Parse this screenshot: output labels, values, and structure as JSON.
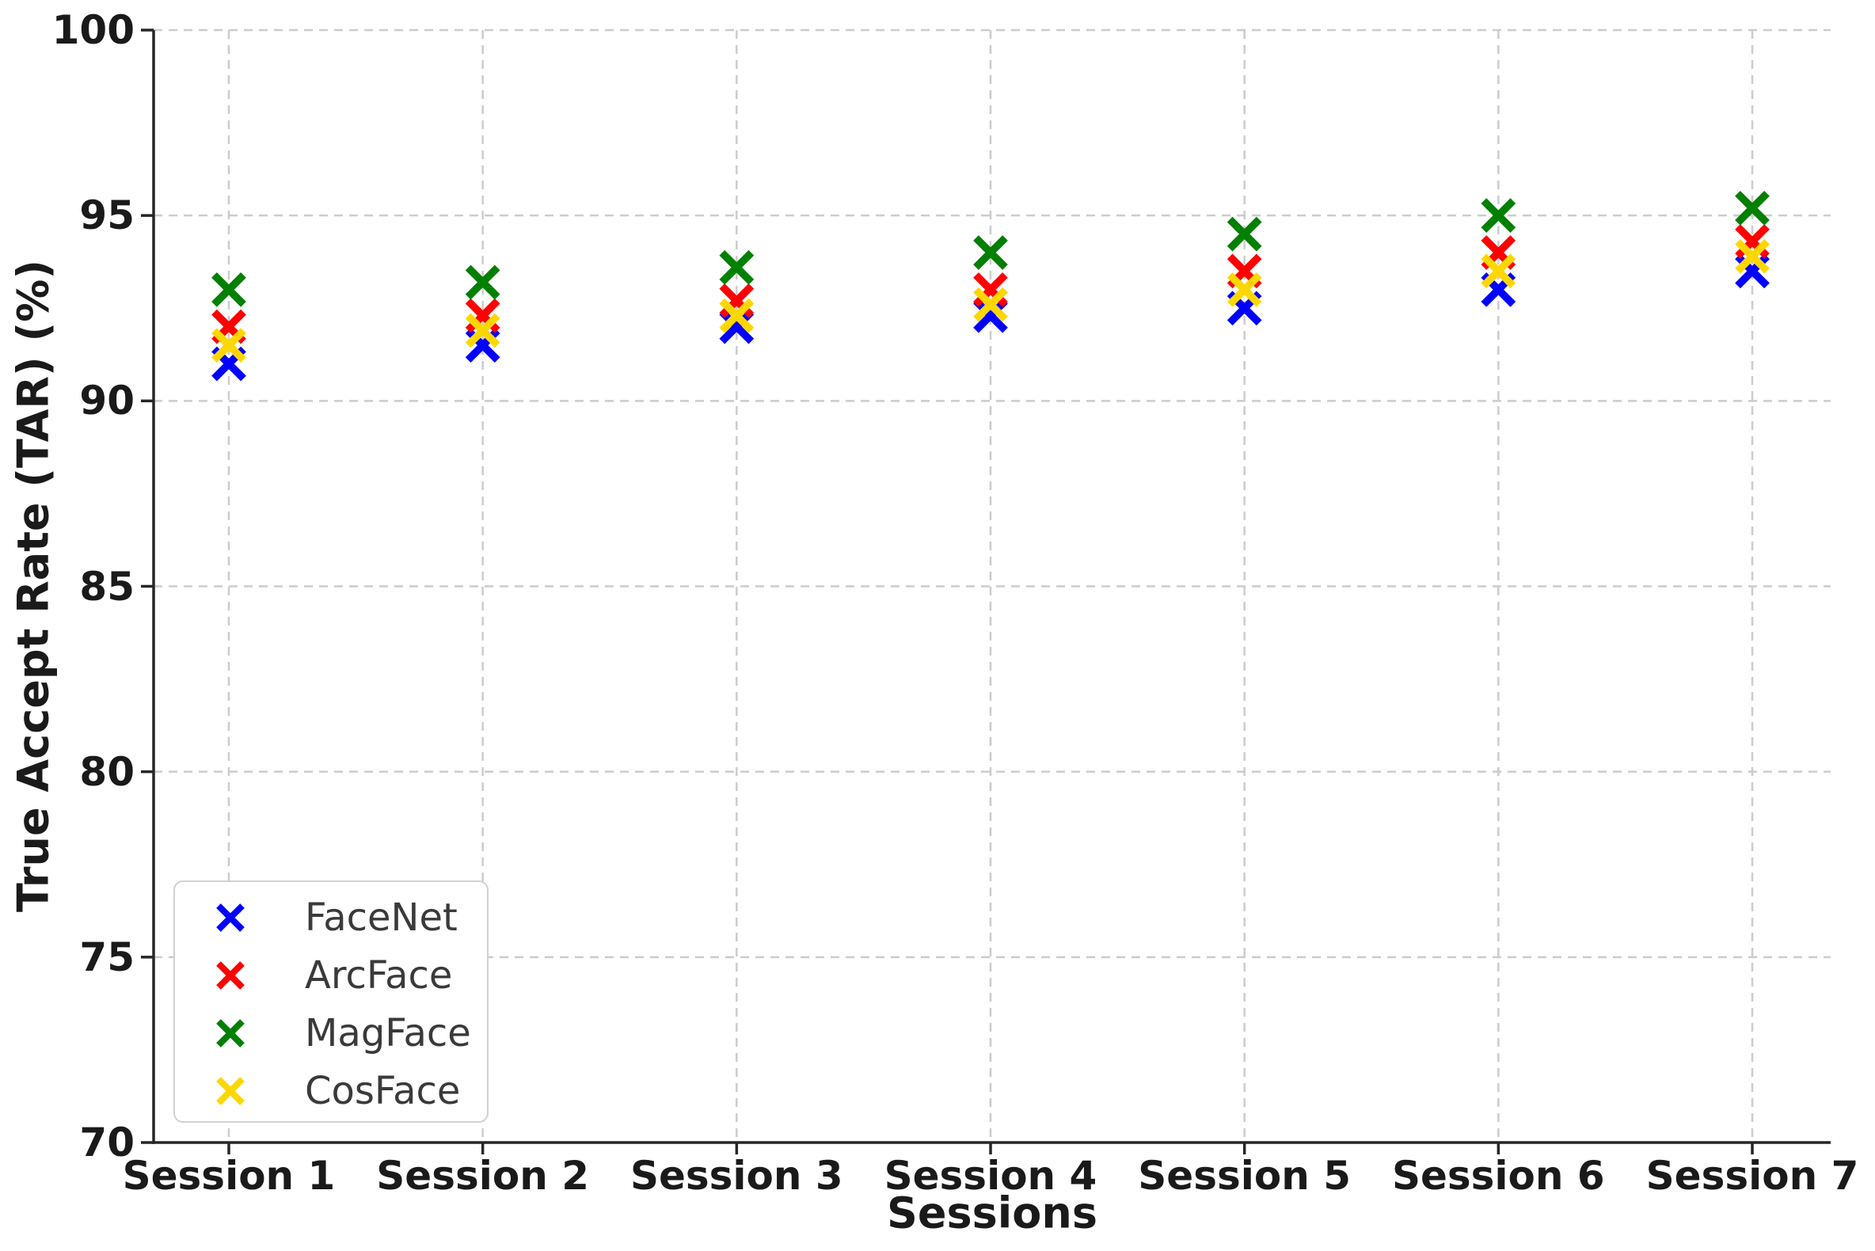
{
  "chart_data": {
    "type": "scatter",
    "title": "",
    "xlabel": "Sessions",
    "ylabel": "True Accept Rate (TAR) (%)",
    "categories": [
      "Session 1",
      "Session 2",
      "Session 3",
      "Session 4",
      "Session 5",
      "Session 6",
      "Session 7"
    ],
    "y_ticks": [
      70,
      75,
      80,
      85,
      90,
      95,
      100
    ],
    "ylim": [
      70,
      100
    ],
    "grid": true,
    "grid_style": "dashed",
    "marker": "x",
    "legend_position": "lower left",
    "series": [
      {
        "name": "FaceNet",
        "color": "#0000FF",
        "values": [
          91.0,
          91.5,
          92.0,
          92.3,
          92.5,
          93.0,
          93.5
        ]
      },
      {
        "name": "ArcFace",
        "color": "#FF0000",
        "values": [
          92.0,
          92.3,
          92.7,
          93.0,
          93.5,
          94.0,
          94.3
        ]
      },
      {
        "name": "MagFace",
        "color": "#008000",
        "values": [
          93.0,
          93.2,
          93.6,
          94.0,
          94.5,
          95.0,
          95.2
        ]
      },
      {
        "name": "CosFace",
        "color": "#FFD700",
        "values": [
          91.5,
          91.9,
          92.3,
          92.6,
          93.0,
          93.5,
          93.9
        ]
      }
    ],
    "colors": {
      "grid": "#cccccc",
      "spine": "#262626",
      "tick_text": "#1a1a1a",
      "legend_text": "#3a3a3a",
      "background": "#ffffff"
    }
  }
}
